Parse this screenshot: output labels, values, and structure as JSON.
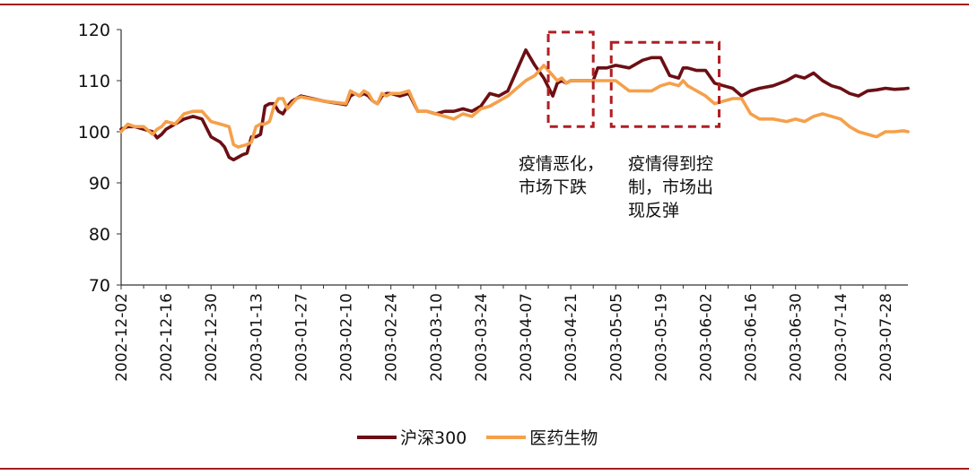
{
  "chart_data": {
    "type": "line",
    "title": "",
    "xlabel": "",
    "ylabel": "",
    "ylim": [
      70,
      120
    ],
    "yticks": [
      70,
      80,
      90,
      100,
      110,
      120
    ],
    "grid": false,
    "legend_position": "bottom",
    "x_tick_labels": [
      "2002-12-02",
      "2002-12-16",
      "2002-12-30",
      "2003-01-13",
      "2003-01-27",
      "2003-02-10",
      "2003-02-24",
      "2003-03-10",
      "2003-03-24",
      "2003-04-07",
      "2003-04-21",
      "2003-05-05",
      "2003-05-19",
      "2003-06-02",
      "2003-06-16",
      "2003-06-30",
      "2003-07-14",
      "2003-07-28"
    ],
    "x_range": [
      0,
      17.5
    ],
    "series": [
      {
        "name": "沪深300",
        "color": "#6b0f14",
        "x": [
          0,
          0.15,
          0.3,
          0.5,
          0.7,
          0.8,
          0.9,
          1.0,
          1.1,
          1.2,
          1.4,
          1.6,
          1.8,
          2.0,
          2.1,
          2.2,
          2.3,
          2.4,
          2.5,
          2.6,
          2.7,
          2.8,
          2.9,
          3.0,
          3.1,
          3.2,
          3.3,
          3.4,
          3.5,
          3.6,
          3.7,
          3.8,
          3.9,
          4.0,
          4.5,
          5.0,
          5.1,
          5.2,
          5.3,
          5.4,
          5.5,
          5.6,
          5.7,
          5.8,
          5.9,
          6.0,
          6.2,
          6.4,
          6.6,
          6.8,
          7.0,
          7.2,
          7.4,
          7.6,
          7.8,
          8.0,
          8.2,
          8.4,
          8.6,
          8.8,
          9.0,
          9.2,
          9.4,
          9.6,
          9.7,
          9.8,
          9.9,
          10.0,
          10.1,
          10.2,
          10.3,
          10.4,
          10.5,
          10.6,
          10.8,
          11.0,
          11.3,
          11.6,
          11.8,
          12.0,
          12.2,
          12.4,
          12.5,
          12.6,
          12.8,
          13.0,
          13.2,
          13.4,
          13.6,
          13.8,
          14.0,
          14.2,
          14.5,
          14.8,
          15.0,
          15.2,
          15.4,
          15.6,
          15.8,
          16.0,
          16.2,
          16.4,
          16.6,
          16.8,
          17.0,
          17.2,
          17.4,
          17.5
        ],
        "values": [
          100.5,
          101,
          101,
          100.5,
          100,
          98.8,
          99.5,
          100.5,
          101,
          101.5,
          102.5,
          103,
          102.5,
          99,
          98.5,
          98,
          97,
          95,
          94.5,
          95,
          95.5,
          95.8,
          99,
          99,
          99.5,
          105,
          105.5,
          105.5,
          104,
          103.5,
          105,
          106,
          106.5,
          107,
          106,
          105.3,
          107,
          107.5,
          107,
          107.5,
          107,
          106,
          105.5,
          107,
          107.5,
          107.5,
          107,
          107.5,
          104,
          104,
          103.5,
          104,
          104,
          104.5,
          104,
          105,
          107.5,
          107,
          108,
          112,
          116,
          113,
          110.5,
          107,
          109.5,
          110,
          109.5,
          110,
          110,
          110,
          110,
          110,
          110,
          112.5,
          112.5,
          113,
          112.5,
          114,
          114.5,
          114.5,
          111,
          110.5,
          112.5,
          112.5,
          112,
          112,
          109.5,
          109,
          108.5,
          107,
          108,
          108.5,
          109,
          110,
          111,
          110.5,
          111.5,
          110,
          109,
          108.5,
          107.5,
          107,
          108,
          108.2,
          108.5,
          108.3,
          108.4,
          108.5
        ]
      },
      {
        "name": "医药生物",
        "color": "#f5a04a",
        "x": [
          0,
          0.15,
          0.3,
          0.5,
          0.7,
          0.8,
          0.9,
          1.0,
          1.2,
          1.4,
          1.6,
          1.8,
          2.0,
          2.2,
          2.4,
          2.5,
          2.6,
          2.8,
          2.9,
          3.0,
          3.1,
          3.2,
          3.3,
          3.4,
          3.5,
          3.6,
          3.7,
          3.8,
          3.9,
          4.0,
          4.5,
          5.0,
          5.1,
          5.2,
          5.3,
          5.4,
          5.5,
          5.6,
          5.7,
          5.8,
          5.9,
          6.0,
          6.2,
          6.4,
          6.6,
          6.8,
          7.0,
          7.2,
          7.4,
          7.6,
          7.8,
          8.0,
          8.2,
          8.4,
          8.6,
          8.8,
          9.0,
          9.2,
          9.4,
          9.6,
          9.7,
          9.8,
          9.9,
          10.0,
          10.1,
          10.2,
          10.3,
          10.4,
          10.5,
          10.6,
          10.8,
          11.0,
          11.3,
          11.6,
          11.8,
          12.0,
          12.2,
          12.4,
          12.5,
          12.6,
          12.8,
          13.0,
          13.2,
          13.4,
          13.6,
          13.8,
          14.0,
          14.2,
          14.5,
          14.8,
          15.0,
          15.2,
          15.4,
          15.6,
          15.8,
          16.0,
          16.2,
          16.4,
          16.6,
          16.8,
          17.0,
          17.2,
          17.4,
          17.5
        ],
        "values": [
          100,
          101.5,
          101,
          101,
          99.5,
          100.5,
          101,
          102,
          101.5,
          103.5,
          104,
          104,
          102,
          101.5,
          101,
          97.5,
          97,
          97.5,
          98,
          101,
          101.5,
          101.5,
          102,
          105,
          106.5,
          106.5,
          104.5,
          105.5,
          106.5,
          106.8,
          106,
          105.5,
          108,
          107.5,
          107,
          108,
          107.5,
          106,
          105.5,
          107.5,
          107,
          107.5,
          107.5,
          108,
          104,
          104,
          103.5,
          103,
          102.5,
          103.5,
          103,
          104.5,
          105,
          106,
          107,
          108.5,
          110,
          111,
          113,
          111,
          110,
          110.5,
          109.5,
          110,
          110,
          110,
          110,
          110,
          110,
          110,
          110,
          110,
          108,
          108,
          108,
          109,
          109.5,
          109,
          110,
          109,
          108,
          107,
          105.5,
          106,
          106.5,
          106.5,
          103.5,
          102.5,
          102.5,
          102,
          102.5,
          102,
          103,
          103.5,
          103,
          102.5,
          101,
          100,
          99.5,
          99,
          100,
          100,
          100.2,
          100
        ]
      }
    ],
    "annotations": [
      {
        "text": "疫情恶化，\n市场下跌",
        "x_range": [
          9.5,
          10.5
        ],
        "y_range": [
          101,
          119.5
        ]
      },
      {
        "text": "疫情得到控\n制，市场出\n现反弹",
        "x_range": [
          10.9,
          13.3
        ],
        "y_range": [
          101,
          117.5
        ]
      }
    ]
  },
  "annotation_texts": {
    "a1": "疫情恶化，\n市场下跌",
    "a2": "疫情得到控\n制，市场出\n现反弹"
  },
  "legend": {
    "s1": "沪深300",
    "s2": "医药生物"
  },
  "colors": {
    "series1": "#6b0f14",
    "series2": "#f5a04a",
    "frame": "#a51c1c",
    "box": "#b01e23"
  }
}
